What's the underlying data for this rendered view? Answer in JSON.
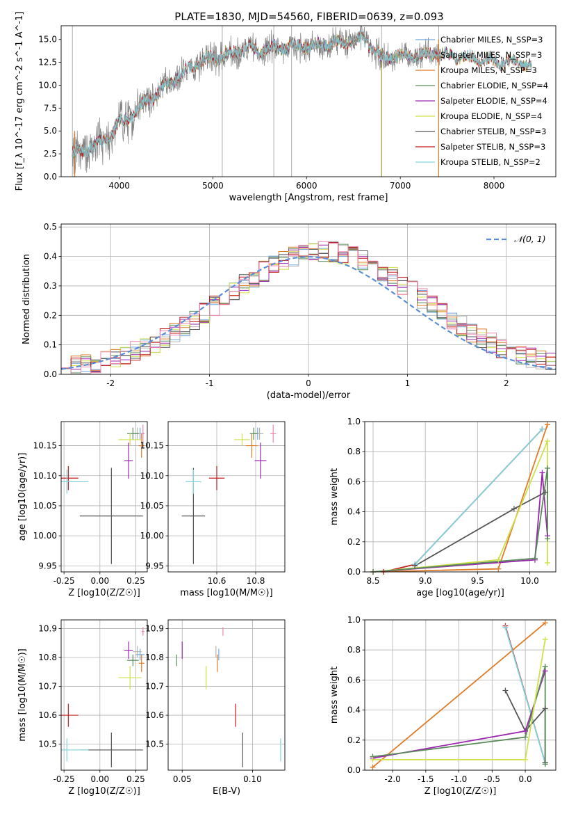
{
  "title": "PLATE=1830, MJD=54560, FIBERID=0639, z=0.093",
  "colors": {
    "chabrier_miles": "#6fa8dc",
    "salpeter_miles": "#b5b5b5",
    "kroupa_miles": "#e07b28",
    "chabrier_elodie": "#5a8a5a",
    "salpeter_elodie": "#9b27af",
    "kroupa_elodie": "#cfe04a",
    "chabrier_stelib": "#555555",
    "salpeter_stelib": "#c41a1a",
    "kroupa_stelib": "#7fd3dc",
    "pink": "#ee86b0",
    "gaussian": "#5b8ed6",
    "data": "#808080"
  },
  "chart_data": [
    {
      "id": "spectrum",
      "type": "line",
      "xlabel": "wavelength [Angstrom, rest frame]",
      "ylabel": "Flux [f_λ 10^-17 erg cm^-2 s^-1 A^-1]",
      "xlim": [
        3380,
        8660
      ],
      "ylim": [
        0,
        16.5
      ],
      "xticks": [
        4000,
        5000,
        6000,
        7000,
        8000
      ],
      "yticks": [
        "0.0",
        "2.5",
        "5.0",
        "7.5",
        "10.0",
        "12.5",
        "15.0"
      ],
      "legend": [
        "Chabrier MILES, N_SSP=3",
        "Salpeter MILES, N_SSP=3",
        "Kroupa MILES, N_SSP=3",
        "Chabrier ELODIE, N_SSP=4",
        "Salpeter ELODIE, N_SSP=4",
        "Kroupa ELODIE, N_SSP=4",
        "Chabrier STELIB, N_SSP=3",
        "Salpeter STELIB, N_SSP=3",
        "Kroupa STELIB, N_SSP=2"
      ],
      "legend_colors": [
        "chabrier_miles",
        "salpeter_miles",
        "kroupa_miles",
        "chabrier_elodie",
        "salpeter_elodie",
        "kroupa_elodie",
        "chabrier_stelib",
        "salpeter_stelib",
        "kroupa_stelib"
      ],
      "continuum": {
        "x": [
          3500,
          3600,
          3700,
          3800,
          3900,
          4000,
          4100,
          4200,
          4300,
          4400,
          4500,
          4600,
          4700,
          4800,
          4900,
          5000,
          5100,
          5200,
          5300,
          5400,
          5500,
          5600,
          5800,
          6000,
          6200,
          6400,
          6600,
          6800,
          7000,
          7200,
          7400
        ],
        "y": [
          2.5,
          2.8,
          3.2,
          3.7,
          4.5,
          5.8,
          6.5,
          7.4,
          8.4,
          9.0,
          10.0,
          10.8,
          11.4,
          12.2,
          12.7,
          13.0,
          13.2,
          13.6,
          13.8,
          14.0,
          13.8,
          14.0,
          14.2,
          14.3,
          14.5,
          14.7,
          15.1,
          13.0,
          13.2,
          13.3,
          13.4
        ]
      },
      "model_x_range": [
        3500,
        8400
      ],
      "spikes": [
        3500,
        5100,
        5650,
        5840,
        6800,
        7410
      ]
    },
    {
      "id": "residuals",
      "type": "histogram",
      "xlabel": "(data-model)/error",
      "ylabel": "Normed distribution",
      "xlim": [
        -2.5,
        2.5
      ],
      "ylim": [
        0,
        0.51
      ],
      "xticks": [
        -2,
        -1,
        0,
        1,
        2
      ],
      "yticks": [
        "0.0",
        "0.1",
        "0.2",
        "0.3",
        "0.4",
        "0.5"
      ],
      "legend": [
        "𝒩(0, 1)"
      ],
      "bin_width": 0.1
    },
    {
      "id": "age_vs_Z",
      "type": "scatter",
      "xlabel": "Z [log10(Z/Z☉)]",
      "ylabel": "age  [log10(age/yr)]",
      "xlim": [
        -0.27,
        0.33
      ],
      "ylim": [
        9.94,
        10.19
      ],
      "xticks": [
        "-0.25",
        "0.00",
        "0.25"
      ],
      "yticks": [
        "9.95",
        "10.00",
        "10.05",
        "10.10",
        "10.15"
      ]
    },
    {
      "id": "age_vs_mass",
      "type": "scatter",
      "xlabel": "mass [log10(M/M☉)]",
      "ylabel": "",
      "xlim": [
        10.35,
        10.95
      ],
      "ylim": [
        9.94,
        10.19
      ],
      "xticks": [
        "10.6",
        "10.8"
      ],
      "yticks": [
        "9.95",
        "10.00",
        "10.05",
        "10.10",
        "10.15"
      ]
    },
    {
      "id": "weight_vs_age",
      "type": "line",
      "xlabel": "age  [log10(age/yr)]",
      "ylabel": "mass weight",
      "xlim": [
        8.42,
        10.25
      ],
      "ylim": [
        0,
        1.0
      ],
      "xticks": [
        "8.5",
        "9.0",
        "9.5",
        "10.0"
      ],
      "yticks": [
        "0.0",
        "0.2",
        "0.4",
        "0.6",
        "0.8",
        "1.0"
      ]
    },
    {
      "id": "mass_vs_Z",
      "type": "scatter",
      "xlabel": "Z [log10(Z/Z☉)]",
      "ylabel": "mass [log10(M/M☉)]",
      "xlim": [
        -0.27,
        0.33
      ],
      "ylim": [
        10.41,
        10.93
      ],
      "xticks": [
        "-0.25",
        "0.00",
        "0.25"
      ],
      "yticks": [
        "10.5",
        "10.6",
        "10.7",
        "10.8",
        "10.9"
      ]
    },
    {
      "id": "mass_vs_ebv",
      "type": "scatter",
      "xlabel": "E(B-V)",
      "ylabel": "",
      "xlim": [
        0.04,
        0.123
      ],
      "ylim": [
        10.41,
        10.93
      ],
      "xticks": [
        "0.05",
        "0.10"
      ],
      "yticks": [
        "10.5",
        "10.6",
        "10.7",
        "10.8",
        "10.9"
      ]
    },
    {
      "id": "weight_vs_Z",
      "type": "line",
      "xlabel": "Z [log10(Z/Z☉)]",
      "ylabel": "mass weight",
      "xlim": [
        -2.42,
        0.46
      ],
      "ylim": [
        0,
        1.0
      ],
      "xticks": [
        "-2.0",
        "-1.5",
        "-1.0",
        "-0.5",
        "0.0"
      ],
      "yticks": [
        "0.0",
        "0.2",
        "0.4",
        "0.6",
        "0.8",
        "1.0"
      ]
    }
  ],
  "fits": [
    {
      "key": "chabrier_miles",
      "Z": 0.28,
      "dZ": 0.03,
      "age": 10.17,
      "dage": 0.01,
      "mass": 10.81,
      "dmass": 0.02,
      "ebv": 0.076
    },
    {
      "key": "salpeter_miles",
      "Z": 0.26,
      "dZ": 0.03,
      "age": 10.17,
      "dage": 0.01,
      "mass": 10.82,
      "dmass": 0.02,
      "ebv": 0.074
    },
    {
      "key": "kroupa_miles",
      "Z": 0.29,
      "dZ": 0.02,
      "age": 10.15,
      "dage": 0.02,
      "mass": 10.78,
      "dmass": 0.03,
      "ebv": 0.075
    },
    {
      "key": "chabrier_elodie",
      "Z": 0.23,
      "dZ": 0.04,
      "age": 10.17,
      "dage": 0.01,
      "mass": 10.79,
      "dmass": 0.02,
      "ebv": 0.046
    },
    {
      "key": "salpeter_elodie",
      "Z": 0.2,
      "dZ": 0.03,
      "age": 10.125,
      "dage": 0.03,
      "mass": 10.825,
      "dmass": 0.03,
      "ebv": 0.05
    },
    {
      "key": "kroupa_elodie",
      "Z": 0.21,
      "dZ": 0.08,
      "age": 10.16,
      "dage": 0.01,
      "mass": 10.73,
      "dmass": 0.04,
      "ebv": 0.067
    },
    {
      "key": "chabrier_stelib",
      "Z": 0.08,
      "dZ": 0.22,
      "age": 10.033,
      "dage": 0.08,
      "mass": 10.48,
      "dmass": 0.06,
      "ebv": 0.093
    },
    {
      "key": "salpeter_stelib",
      "Z": -0.22,
      "dZ": 0.07,
      "age": 10.096,
      "dage": 0.02,
      "mass": 10.6,
      "dmass": 0.04,
      "ebv": 0.088
    },
    {
      "key": "kroupa_stelib",
      "Z": -0.23,
      "dZ": 0.15,
      "age": 10.09,
      "dage": 0.02,
      "mass": 10.48,
      "dmass": 0.04,
      "ebv": 0.12
    },
    {
      "key": "pink",
      "Z": 0.3,
      "dZ": 0.01,
      "age": 10.17,
      "dage": 0.015,
      "mass": 10.89,
      "dmass": 0.015,
      "ebv": 0.079
    }
  ],
  "weights_age": [
    {
      "key": "kroupa_miles",
      "pts": [
        [
          8.5,
          0.0
        ],
        [
          9.7,
          0.02
        ],
        [
          10.17,
          0.98
        ]
      ]
    },
    {
      "key": "salpeter_stelib",
      "pts": [
        [
          8.6,
          0.0
        ],
        [
          8.9,
          0.05
        ],
        [
          10.12,
          0.95
        ]
      ]
    },
    {
      "key": "kroupa_stelib",
      "pts": [
        [
          8.9,
          0.05
        ],
        [
          10.12,
          0.95
        ]
      ]
    },
    {
      "key": "chabrier_stelib",
      "pts": [
        [
          8.9,
          0.04
        ],
        [
          9.85,
          0.42
        ],
        [
          10.15,
          0.53
        ]
      ]
    },
    {
      "key": "kroupa_elodie",
      "pts": [
        [
          8.5,
          0.0
        ],
        [
          9.7,
          0.08
        ],
        [
          10.17,
          0.87
        ],
        [
          10.17,
          0.06
        ]
      ]
    },
    {
      "key": "salpeter_elodie",
      "pts": [
        [
          8.5,
          0.0
        ],
        [
          10.05,
          0.08
        ],
        [
          10.12,
          0.66
        ],
        [
          10.17,
          0.24
        ]
      ]
    },
    {
      "key": "chabrier_elodie",
      "pts": [
        [
          8.5,
          0.0
        ],
        [
          10.05,
          0.09
        ],
        [
          10.17,
          0.69
        ],
        [
          10.17,
          0.22
        ]
      ]
    }
  ],
  "weights_Z": [
    {
      "key": "kroupa_miles",
      "pts": [
        [
          -2.3,
          0.02
        ],
        [
          0.3,
          0.98
        ]
      ]
    },
    {
      "key": "salpeter_stelib",
      "pts": [
        [
          -0.3,
          0.96
        ],
        [
          0.3,
          0.05
        ]
      ]
    },
    {
      "key": "kroupa_stelib",
      "pts": [
        [
          -0.3,
          0.95
        ],
        [
          0.3,
          0.05
        ]
      ]
    },
    {
      "key": "chabrier_stelib",
      "pts": [
        [
          -0.3,
          0.53
        ],
        [
          0.0,
          0.26
        ],
        [
          0.3,
          0.41
        ],
        [
          0.3,
          0.05
        ]
      ]
    },
    {
      "key": "salpeter_elodie",
      "pts": [
        [
          -2.3,
          0.08
        ],
        [
          0.0,
          0.26
        ],
        [
          0.3,
          0.66
        ]
      ]
    },
    {
      "key": "chabrier_elodie",
      "pts": [
        [
          -2.3,
          0.09
        ],
        [
          0.0,
          0.22
        ],
        [
          0.3,
          0.69
        ],
        [
          0.3,
          0.04
        ]
      ]
    },
    {
      "key": "kroupa_elodie",
      "pts": [
        [
          -2.3,
          0.07
        ],
        [
          0.0,
          0.07
        ],
        [
          0.3,
          0.87
        ]
      ]
    }
  ]
}
